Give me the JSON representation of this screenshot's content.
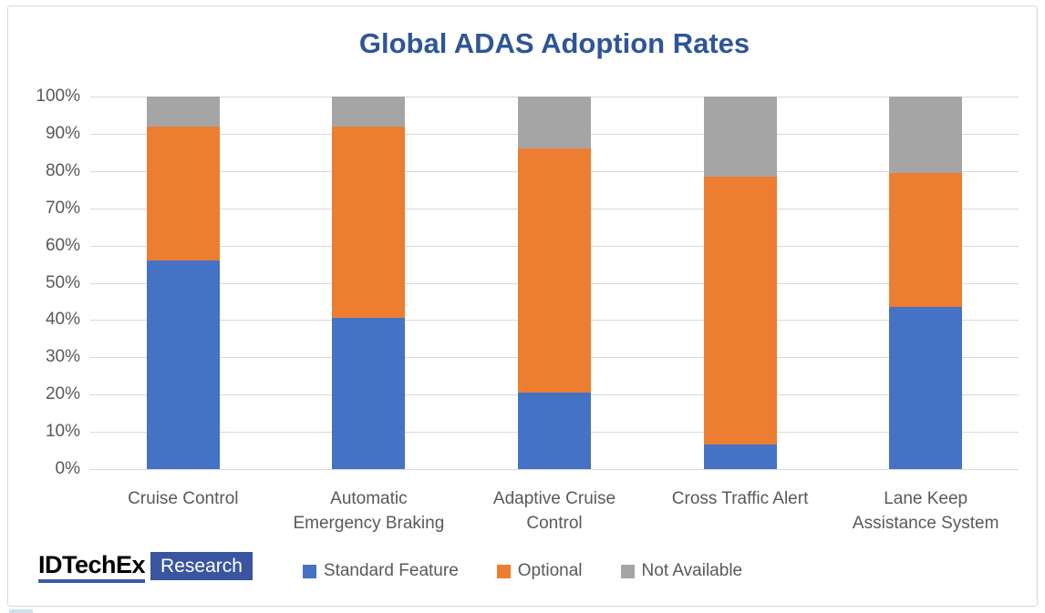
{
  "canvas": {
    "background": "#FFFFFF",
    "frame_border_color": "#D9D9D9"
  },
  "chart_data": {
    "type": "bar",
    "stacked": true,
    "title": "Global ADAS Adoption Rates",
    "title_color": "#2E5597",
    "categories": [
      "Cruise Control",
      "Automatic Emergency Braking",
      "Adaptive Cruise Control",
      "Cross Traffic Alert",
      "Lane Keep Assistance System"
    ],
    "category_label_lines": [
      [
        "Cruise Control"
      ],
      [
        "Automatic",
        "Emergency Braking"
      ],
      [
        "Adaptive Cruise",
        "Control"
      ],
      [
        "Cross Traffic Alert"
      ],
      [
        "Lane Keep",
        "Assistance System"
      ]
    ],
    "series": [
      {
        "name": "Standard Feature",
        "color": "#4472C4",
        "values": [
          56,
          40.5,
          20.5,
          6.5,
          43.5
        ]
      },
      {
        "name": "Optional",
        "color": "#ED7D31",
        "values": [
          36,
          51.5,
          65.5,
          72,
          36
        ]
      },
      {
        "name": "Not Available",
        "color": "#A5A5A5",
        "values": [
          8,
          8,
          14,
          21.5,
          20.5
        ]
      }
    ],
    "xlabel": "",
    "ylabel": "",
    "ylim": [
      0,
      100
    ],
    "y_tick_step": 10,
    "y_tick_labels": [
      "0%",
      "10%",
      "20%",
      "30%",
      "40%",
      "50%",
      "60%",
      "70%",
      "80%",
      "90%",
      "100%"
    ],
    "grid": true,
    "gridline_color": "#D9D9D9",
    "axis_text_color": "#595959",
    "legend_position": "bottom",
    "legend_text_color": "#595959"
  },
  "logo": {
    "brand": "IDTechEx",
    "suffix": "Research",
    "brand_color": "#000000",
    "underline_color": "#3D5BA7",
    "box_color": "#3A55A0",
    "suffix_color": "#FFFFFF"
  },
  "artifact_color": "#BFD3EA"
}
